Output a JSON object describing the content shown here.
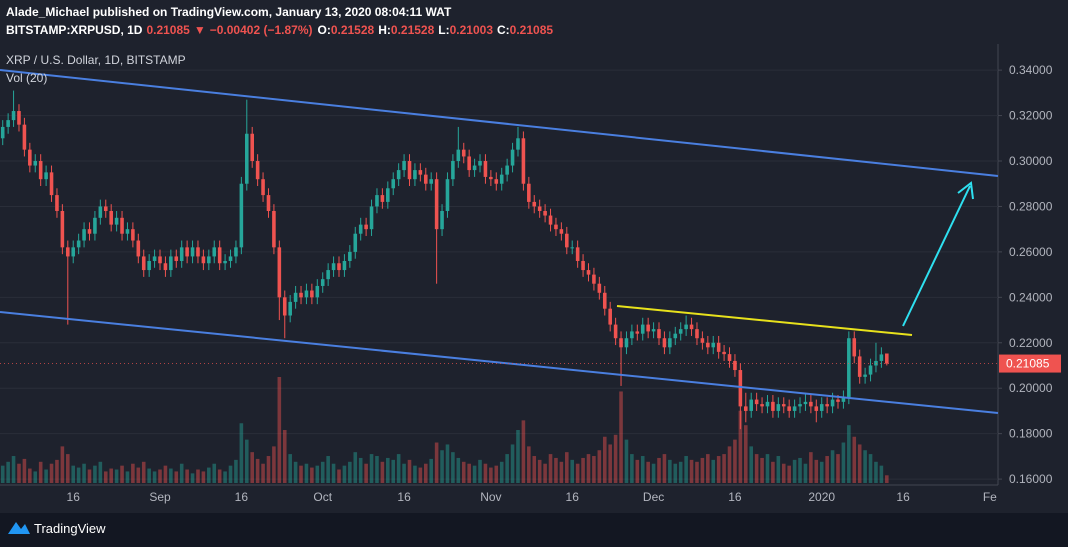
{
  "chart_data": {
    "type": "candlestick",
    "publisher": "Alade_Michael published on TradingView.com, January 13, 2020 08:04:11 WAT",
    "symbol": "BITSTAMP:XRPUSD, 1D",
    "direction": "▼",
    "change": "−0.00402 (−1.87%)",
    "ohlc_labels": [
      "O:",
      "H:",
      "L:",
      "C:"
    ],
    "title": "XRP / U.S. Dollar, 1D, BITSTAMP",
    "volume_label": "Vol (20)",
    "brand": "TradingView",
    "up_color": "#26a69a",
    "down_color": "#ef5350",
    "grid": true,
    "ylim": [
      0.1574,
      0.3515
    ],
    "yticks": [
      {
        "value": 0.16,
        "label": "0.16000"
      },
      {
        "value": 0.18,
        "label": "0.18000"
      },
      {
        "value": 0.2,
        "label": "0.20000"
      },
      {
        "value": 0.22,
        "label": "0.22000"
      },
      {
        "value": 0.24,
        "label": "0.24000"
      },
      {
        "value": 0.26,
        "label": "0.26000"
      },
      {
        "value": 0.28,
        "label": "0.28000"
      },
      {
        "value": 0.3,
        "label": "0.30000"
      },
      {
        "value": 0.32,
        "label": "0.32000"
      },
      {
        "value": 0.34,
        "label": "0.34000"
      }
    ],
    "categories": [
      null,
      null,
      null,
      null,
      null,
      null,
      null,
      null,
      null,
      null,
      null,
      null,
      null,
      "16",
      null,
      null,
      null,
      null,
      null,
      null,
      null,
      null,
      null,
      null,
      null,
      null,
      null,
      null,
      null,
      "Sep",
      null,
      null,
      null,
      null,
      null,
      null,
      null,
      null,
      null,
      null,
      null,
      null,
      null,
      null,
      "16",
      null,
      null,
      null,
      null,
      null,
      null,
      null,
      null,
      null,
      null,
      null,
      null,
      null,
      null,
      "Oct",
      null,
      null,
      null,
      null,
      null,
      null,
      null,
      null,
      null,
      null,
      null,
      null,
      null,
      null,
      "16",
      null,
      null,
      null,
      null,
      null,
      null,
      null,
      null,
      null,
      null,
      null,
      null,
      null,
      null,
      null,
      "Nov",
      null,
      null,
      null,
      null,
      null,
      null,
      null,
      null,
      null,
      null,
      null,
      null,
      null,
      null,
      "16",
      null,
      null,
      null,
      null,
      null,
      null,
      null,
      null,
      null,
      null,
      null,
      null,
      null,
      null,
      "Dec",
      null,
      null,
      null,
      null,
      null,
      null,
      null,
      null,
      null,
      null,
      null,
      null,
      null,
      null,
      "16",
      null,
      null,
      null,
      null,
      null,
      null,
      null,
      null,
      null,
      null,
      null,
      null,
      null,
      null,
      null,
      "2020",
      null,
      null,
      null,
      null,
      null,
      null,
      null,
      null,
      null,
      null,
      null,
      null,
      null,
      null,
      "16",
      null,
      null,
      null,
      null,
      null,
      null,
      null,
      null,
      null,
      null,
      null,
      null,
      null,
      null,
      null,
      "Fe",
      null
    ],
    "open": [
      0.31,
      0.315,
      0.318,
      0.322,
      0.316,
      0.305,
      0.298,
      0.3,
      0.292,
      0.295,
      0.285,
      0.278,
      0.262,
      0.258,
      0.262,
      0.265,
      0.27,
      0.268,
      0.275,
      0.28,
      0.278,
      0.272,
      0.275,
      0.268,
      0.27,
      0.265,
      0.258,
      0.252,
      0.256,
      0.258,
      0.255,
      0.252,
      0.258,
      0.256,
      0.262,
      0.258,
      0.262,
      0.258,
      0.255,
      0.258,
      0.262,
      0.255,
      0.256,
      0.258,
      0.262,
      0.29,
      0.312,
      0.3,
      0.292,
      0.285,
      0.278,
      0.262,
      0.24,
      0.232,
      0.238,
      0.242,
      0.24,
      0.243,
      0.24,
      0.245,
      0.248,
      0.252,
      0.255,
      0.252,
      0.256,
      0.26,
      0.268,
      0.272,
      0.27,
      0.28,
      0.285,
      0.282,
      0.288,
      0.292,
      0.296,
      0.3,
      0.292,
      0.296,
      0.294,
      0.29,
      0.292,
      0.27,
      0.278,
      0.292,
      0.3,
      0.305,
      0.302,
      0.296,
      0.298,
      0.3,
      0.293,
      0.292,
      0.29,
      0.294,
      0.298,
      0.305,
      0.31,
      0.29,
      0.282,
      0.28,
      0.278,
      0.276,
      0.272,
      0.27,
      0.268,
      0.262,
      0.262,
      0.256,
      0.252,
      0.25,
      0.246,
      0.242,
      0.235,
      0.228,
      0.222,
      0.218,
      0.222,
      0.225,
      0.224,
      0.228,
      0.225,
      0.226,
      0.222,
      0.218,
      0.222,
      0.224,
      0.226,
      0.228,
      0.226,
      0.222,
      0.22,
      0.218,
      0.22,
      0.216,
      0.215,
      0.212,
      0.208,
      0.192,
      0.19,
      0.195,
      0.193,
      0.192,
      0.194,
      0.19,
      0.193,
      0.192,
      0.19,
      0.192,
      0.193,
      0.194,
      0.192,
      0.19,
      0.193,
      0.192,
      0.195,
      0.194,
      0.196,
      0.222,
      0.214,
      0.205,
      0.206,
      0.21,
      0.212,
      0.21528,
      null,
      null,
      null,
      null,
      null,
      null,
      null,
      null,
      null,
      null,
      null,
      null,
      null,
      null,
      null,
      null,
      null,
      null,
      null,
      null
    ],
    "high": [
      0.318,
      0.321,
      0.331,
      0.325,
      0.319,
      0.308,
      0.303,
      0.303,
      0.298,
      0.298,
      0.288,
      0.281,
      0.265,
      0.265,
      0.268,
      0.273,
      0.273,
      0.278,
      0.283,
      0.283,
      0.281,
      0.278,
      0.278,
      0.273,
      0.273,
      0.268,
      0.261,
      0.259,
      0.261,
      0.261,
      0.258,
      0.261,
      0.261,
      0.265,
      0.265,
      0.265,
      0.265,
      0.261,
      0.261,
      0.265,
      0.265,
      0.259,
      0.261,
      0.265,
      0.293,
      0.327,
      0.315,
      0.303,
      0.295,
      0.288,
      0.281,
      0.265,
      0.243,
      0.241,
      0.245,
      0.245,
      0.246,
      0.246,
      0.248,
      0.251,
      0.255,
      0.258,
      0.258,
      0.259,
      0.263,
      0.271,
      0.275,
      0.275,
      0.283,
      0.288,
      0.288,
      0.291,
      0.295,
      0.299,
      0.303,
      0.303,
      0.299,
      0.299,
      0.297,
      0.295,
      0.295,
      0.281,
      0.295,
      0.303,
      0.315,
      0.308,
      0.305,
      0.301,
      0.303,
      0.303,
      0.296,
      0.295,
      0.297,
      0.301,
      0.308,
      0.315,
      0.313,
      0.293,
      0.285,
      0.283,
      0.281,
      0.279,
      0.275,
      0.273,
      0.271,
      0.265,
      0.265,
      0.259,
      0.255,
      0.253,
      0.249,
      0.245,
      0.238,
      0.231,
      0.225,
      0.225,
      0.228,
      0.228,
      0.231,
      0.231,
      0.229,
      0.229,
      0.225,
      0.225,
      0.227,
      0.229,
      0.232,
      0.231,
      0.229,
      0.225,
      0.223,
      0.223,
      0.223,
      0.219,
      0.218,
      0.215,
      0.211,
      0.198,
      0.198,
      0.198,
      0.196,
      0.197,
      0.197,
      0.196,
      0.196,
      0.195,
      0.195,
      0.196,
      0.198,
      0.197,
      0.195,
      0.196,
      0.196,
      0.198,
      0.197,
      0.199,
      0.225,
      0.225,
      0.217,
      0.209,
      0.213,
      0.22,
      0.218,
      0.21528,
      null,
      null,
      null,
      null,
      null,
      null,
      null,
      null,
      null,
      null,
      null,
      null,
      null,
      null,
      null,
      null,
      null,
      null,
      null,
      null
    ],
    "low": [
      0.307,
      0.312,
      0.315,
      0.313,
      0.302,
      0.295,
      0.295,
      0.289,
      0.289,
      0.282,
      0.275,
      0.259,
      0.228,
      0.255,
      0.259,
      0.262,
      0.265,
      0.265,
      0.272,
      0.275,
      0.269,
      0.269,
      0.265,
      0.265,
      0.262,
      0.255,
      0.249,
      0.249,
      0.253,
      0.252,
      0.249,
      0.249,
      0.253,
      0.253,
      0.255,
      0.255,
      0.255,
      0.252,
      0.252,
      0.255,
      0.252,
      0.252,
      0.253,
      0.255,
      0.259,
      0.287,
      0.297,
      0.289,
      0.282,
      0.275,
      0.259,
      0.23,
      0.222,
      0.229,
      0.235,
      0.237,
      0.237,
      0.237,
      0.237,
      0.242,
      0.245,
      0.249,
      0.249,
      0.249,
      0.253,
      0.257,
      0.265,
      0.267,
      0.267,
      0.277,
      0.279,
      0.279,
      0.285,
      0.289,
      0.293,
      0.289,
      0.289,
      0.291,
      0.287,
      0.287,
      0.246,
      0.267,
      0.275,
      0.289,
      0.297,
      0.299,
      0.293,
      0.293,
      0.295,
      0.29,
      0.289,
      0.287,
      0.287,
      0.291,
      0.295,
      0.302,
      0.287,
      0.279,
      0.277,
      0.275,
      0.273,
      0.269,
      0.267,
      0.265,
      0.259,
      0.259,
      0.253,
      0.249,
      0.247,
      0.243,
      0.239,
      0.232,
      0.225,
      0.219,
      0.201,
      0.215,
      0.219,
      0.221,
      0.221,
      0.222,
      0.222,
      0.219,
      0.215,
      0.215,
      0.219,
      0.221,
      0.223,
      0.223,
      0.219,
      0.217,
      0.215,
      0.215,
      0.213,
      0.212,
      0.209,
      0.205,
      0.182,
      0.185,
      0.187,
      0.19,
      0.189,
      0.189,
      0.187,
      0.187,
      0.189,
      0.187,
      0.187,
      0.189,
      0.19,
      0.189,
      0.185,
      0.187,
      0.189,
      0.189,
      0.191,
      0.191,
      0.193,
      0.211,
      0.202,
      0.202,
      0.203,
      0.207,
      0.209,
      0.21003,
      null,
      null,
      null,
      null,
      null,
      null,
      null,
      null,
      null,
      null,
      null,
      null,
      null,
      null,
      null,
      null,
      null,
      null,
      null,
      null
    ],
    "close": [
      0.315,
      0.318,
      0.322,
      0.316,
      0.305,
      0.298,
      0.3,
      0.292,
      0.295,
      0.285,
      0.278,
      0.262,
      0.258,
      0.262,
      0.265,
      0.27,
      0.268,
      0.275,
      0.28,
      0.278,
      0.272,
      0.275,
      0.268,
      0.27,
      0.265,
      0.258,
      0.252,
      0.256,
      0.258,
      0.255,
      0.252,
      0.258,
      0.256,
      0.262,
      0.258,
      0.262,
      0.258,
      0.255,
      0.258,
      0.262,
      0.255,
      0.256,
      0.258,
      0.262,
      0.29,
      0.312,
      0.3,
      0.292,
      0.285,
      0.278,
      0.262,
      0.24,
      0.232,
      0.238,
      0.242,
      0.24,
      0.243,
      0.24,
      0.245,
      0.248,
      0.252,
      0.255,
      0.252,
      0.256,
      0.26,
      0.268,
      0.272,
      0.27,
      0.28,
      0.285,
      0.282,
      0.288,
      0.292,
      0.296,
      0.3,
      0.292,
      0.296,
      0.294,
      0.29,
      0.292,
      0.27,
      0.278,
      0.292,
      0.3,
      0.305,
      0.302,
      0.296,
      0.298,
      0.3,
      0.293,
      0.292,
      0.29,
      0.294,
      0.298,
      0.305,
      0.31,
      0.29,
      0.282,
      0.28,
      0.278,
      0.276,
      0.272,
      0.27,
      0.268,
      0.262,
      0.262,
      0.256,
      0.252,
      0.25,
      0.246,
      0.242,
      0.235,
      0.228,
      0.222,
      0.218,
      0.222,
      0.225,
      0.224,
      0.228,
      0.225,
      0.226,
      0.222,
      0.218,
      0.222,
      0.224,
      0.226,
      0.228,
      0.226,
      0.222,
      0.22,
      0.218,
      0.22,
      0.216,
      0.215,
      0.212,
      0.208,
      0.192,
      0.19,
      0.195,
      0.193,
      0.192,
      0.194,
      0.19,
      0.193,
      0.192,
      0.19,
      0.192,
      0.193,
      0.194,
      0.192,
      0.19,
      0.193,
      0.192,
      0.195,
      0.194,
      0.196,
      0.222,
      0.214,
      0.205,
      0.206,
      0.21,
      0.212,
      0.21487,
      0.21085,
      null,
      null,
      null,
      null,
      null,
      null,
      null,
      null,
      null,
      null,
      null,
      null,
      null,
      null,
      null,
      null,
      null,
      null,
      null,
      null
    ],
    "volume": [
      18,
      22,
      28,
      20,
      25,
      15,
      12,
      22,
      14,
      20,
      24,
      38,
      30,
      18,
      16,
      20,
      14,
      18,
      22,
      12,
      15,
      14,
      18,
      12,
      20,
      16,
      22,
      15,
      12,
      14,
      18,
      15,
      12,
      20,
      14,
      10,
      14,
      12,
      16,
      20,
      14,
      12,
      18,
      24,
      62,
      45,
      32,
      25,
      20,
      28,
      38,
      110,
      55,
      30,
      22,
      18,
      20,
      16,
      18,
      22,
      28,
      20,
      14,
      18,
      22,
      32,
      26,
      20,
      30,
      28,
      22,
      26,
      24,
      30,
      20,
      24,
      18,
      16,
      20,
      25,
      42,
      34,
      40,
      32,
      26,
      22,
      20,
      18,
      24,
      20,
      16,
      18,
      22,
      30,
      40,
      55,
      65,
      38,
      28,
      24,
      20,
      30,
      26,
      22,
      32,
      24,
      20,
      26,
      30,
      28,
      34,
      48,
      40,
      50,
      95,
      45,
      30,
      24,
      28,
      22,
      20,
      26,
      30,
      24,
      20,
      22,
      28,
      24,
      22,
      26,
      30,
      24,
      28,
      30,
      38,
      45,
      75,
      60,
      38,
      30,
      26,
      30,
      22,
      28,
      20,
      18,
      24,
      26,
      20,
      32,
      24,
      22,
      28,
      34,
      30,
      42,
      60,
      48,
      40,
      34,
      30,
      22,
      18,
      8,
      null,
      null,
      null,
      null,
      null,
      null,
      null,
      null,
      null,
      null,
      null,
      null,
      null,
      null,
      null,
      null,
      null,
      null,
      null,
      null
    ]
  }
}
